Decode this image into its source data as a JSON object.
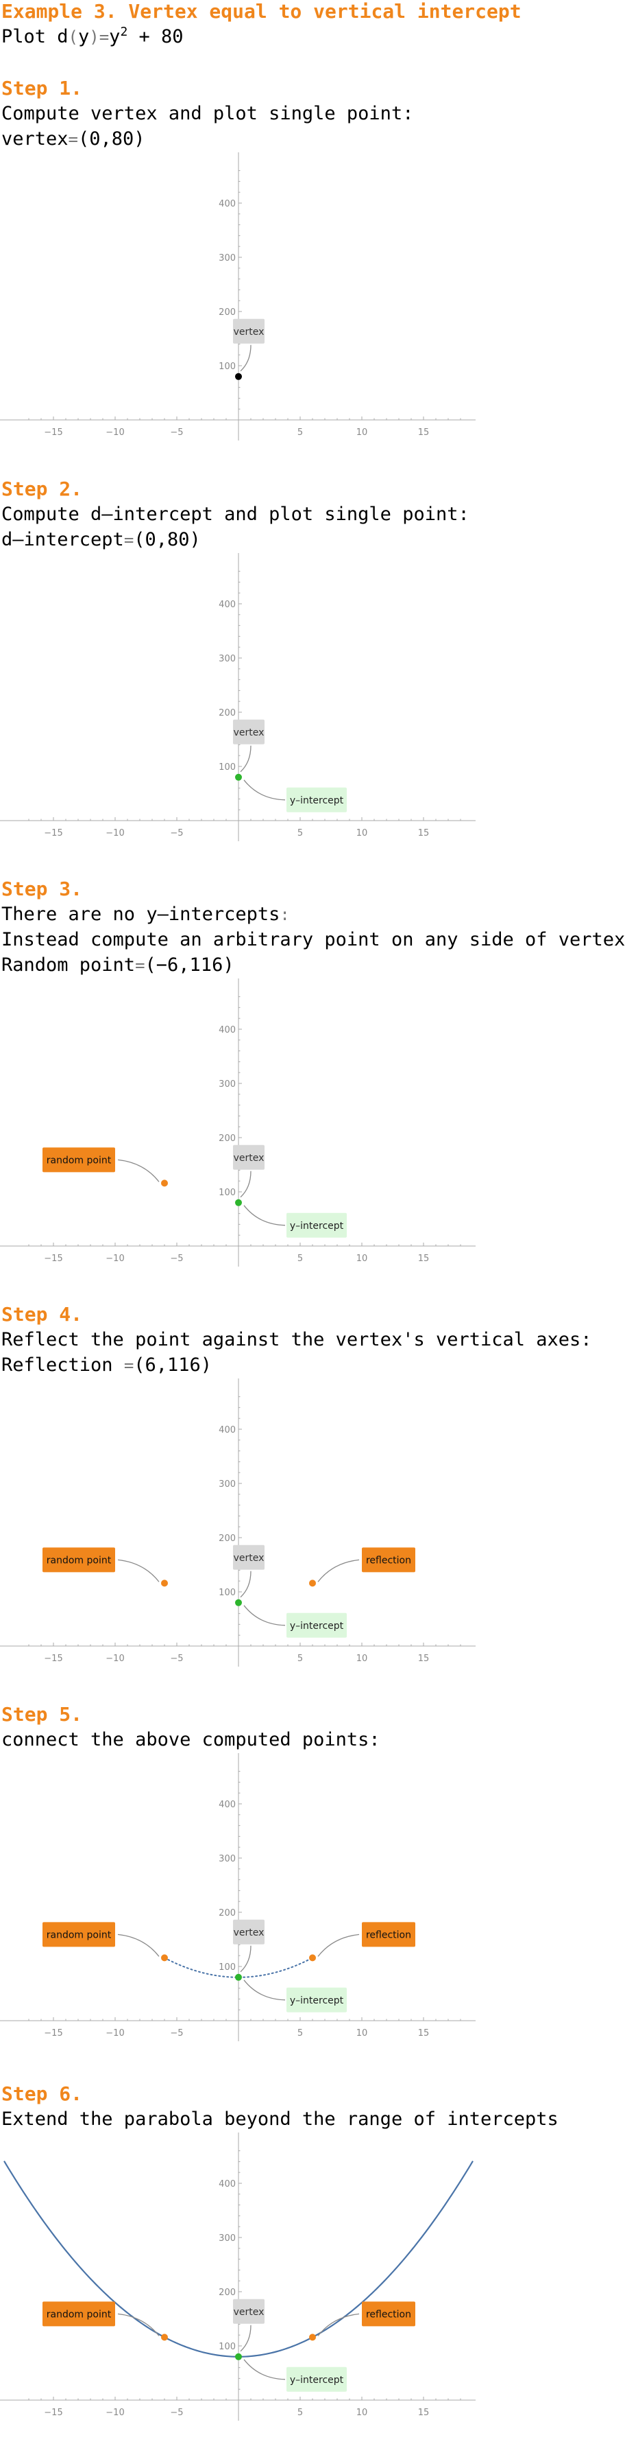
{
  "title": "Example 3. Vertex equal to vertical intercept",
  "plot_line": {
    "prefix": "Plot d",
    "paren_open": "(",
    "var": "y",
    "paren_close": ")",
    "eq": "=",
    "base": "y",
    "exp": "2",
    "tail": " + 80"
  },
  "steps": [
    {
      "title": "Step 1.",
      "lines": [
        {
          "text": "Compute vertex and plot single point:"
        },
        {
          "text": "vertex",
          "eq": "=",
          "value": "(0,80)"
        }
      ]
    },
    {
      "title": "Step 2.",
      "lines": [
        {
          "text": "Compute d–intercept and plot single point:"
        },
        {
          "text": "d–intercept",
          "eq": "=",
          "value": "(0,80)"
        }
      ]
    },
    {
      "title": "Step 3.",
      "lines": [
        {
          "text": "There are no y–intercepts",
          "eq": ":"
        },
        {
          "text": "Instead compute an arbitrary point on any side of vertex:"
        },
        {
          "text": "Random point",
          "eq": "=",
          "value": "(−6,116)"
        }
      ]
    },
    {
      "title": "Step 4.",
      "lines": [
        {
          "text": "Reflect the point against the vertex's vertical axes:"
        },
        {
          "text": "Reflection ",
          "eq": "=",
          "value": "(6,116)"
        }
      ]
    },
    {
      "title": "Step 5.",
      "lines": [
        {
          "text": "connect the above computed points:"
        }
      ]
    },
    {
      "title": "Step 6.",
      "lines": [
        {
          "text": "Extend the parabola beyond the range of intercepts"
        }
      ]
    }
  ],
  "labels": {
    "vertex": "vertex",
    "y_intercept": "y–intercept",
    "random_point": "random point",
    "reflection": "reflection"
  },
  "colors": {
    "accent": "#f0861c",
    "vertex_label_bg": "#d8d8d8",
    "yint_label_bg": "#dcf7dc",
    "green_point": "#2db52d",
    "orange_point": "#f0861c",
    "curve": "#4a74a8",
    "axis": "#aaaaaa"
  },
  "chart_data": [
    {
      "type": "scatter",
      "xlim": [
        -19,
        19
      ],
      "ylim": [
        -5,
        480
      ],
      "xticks": [
        "−15",
        "−10",
        "−5",
        "5",
        "10",
        "15"
      ],
      "yticks": [
        "100",
        "200",
        "300",
        "400"
      ],
      "points": [
        {
          "x": 0,
          "y": 80,
          "role": "vertex",
          "color": "#000000"
        }
      ],
      "annotations": [
        "vertex"
      ]
    },
    {
      "type": "scatter",
      "xlim": [
        -19,
        19
      ],
      "ylim": [
        -5,
        480
      ],
      "xticks": [
        "−15",
        "−10",
        "−5",
        "5",
        "10",
        "15"
      ],
      "yticks": [
        "100",
        "200",
        "300",
        "400"
      ],
      "points": [
        {
          "x": 0,
          "y": 80,
          "role": "vertex",
          "color": "#2db52d"
        }
      ],
      "annotations": [
        "vertex",
        "y_intercept"
      ]
    },
    {
      "type": "scatter",
      "xlim": [
        -19,
        19
      ],
      "ylim": [
        -5,
        480
      ],
      "xticks": [
        "−15",
        "−10",
        "−5",
        "5",
        "10",
        "15"
      ],
      "yticks": [
        "100",
        "200",
        "300",
        "400"
      ],
      "points": [
        {
          "x": 0,
          "y": 80,
          "role": "vertex",
          "color": "#2db52d"
        },
        {
          "x": -6,
          "y": 116,
          "role": "random",
          "color": "#f0861c"
        }
      ],
      "annotations": [
        "vertex",
        "y_intercept",
        "random_point"
      ]
    },
    {
      "type": "scatter",
      "xlim": [
        -19,
        19
      ],
      "ylim": [
        -5,
        480
      ],
      "xticks": [
        "−15",
        "−10",
        "−5",
        "5",
        "10",
        "15"
      ],
      "yticks": [
        "100",
        "200",
        "300",
        "400"
      ],
      "points": [
        {
          "x": 0,
          "y": 80,
          "role": "vertex",
          "color": "#2db52d"
        },
        {
          "x": -6,
          "y": 116,
          "role": "random",
          "color": "#f0861c"
        },
        {
          "x": 6,
          "y": 116,
          "role": "reflection",
          "color": "#f0861c"
        }
      ],
      "annotations": [
        "vertex",
        "y_intercept",
        "random_point",
        "reflection"
      ]
    },
    {
      "type": "line",
      "xlim": [
        -19,
        19
      ],
      "ylim": [
        -5,
        480
      ],
      "xticks": [
        "−15",
        "−10",
        "−5",
        "5",
        "10",
        "15"
      ],
      "yticks": [
        "100",
        "200",
        "300",
        "400"
      ],
      "curve": {
        "formula": "x^2 + 80",
        "x_range": [
          -6,
          6
        ],
        "style": "dotted"
      },
      "points": [
        {
          "x": 0,
          "y": 80,
          "role": "vertex",
          "color": "#2db52d"
        },
        {
          "x": -6,
          "y": 116,
          "role": "random",
          "color": "#f0861c"
        },
        {
          "x": 6,
          "y": 116,
          "role": "reflection",
          "color": "#f0861c"
        }
      ],
      "annotations": [
        "vertex",
        "y_intercept",
        "random_point",
        "reflection"
      ]
    },
    {
      "type": "line",
      "xlim": [
        -19,
        19
      ],
      "ylim": [
        -5,
        480
      ],
      "xticks": [
        "−15",
        "−10",
        "−5",
        "5",
        "10",
        "15"
      ],
      "yticks": [
        "100",
        "200",
        "300",
        "400"
      ],
      "curve": {
        "formula": "x^2 + 80",
        "x_range": [
          -19,
          19
        ],
        "style": "solid"
      },
      "points": [
        {
          "x": 0,
          "y": 80,
          "role": "vertex",
          "color": "#2db52d"
        },
        {
          "x": -6,
          "y": 116,
          "role": "random",
          "color": "#f0861c"
        },
        {
          "x": 6,
          "y": 116,
          "role": "reflection",
          "color": "#f0861c"
        }
      ],
      "annotations": [
        "vertex",
        "y_intercept",
        "random_point",
        "reflection"
      ]
    }
  ]
}
